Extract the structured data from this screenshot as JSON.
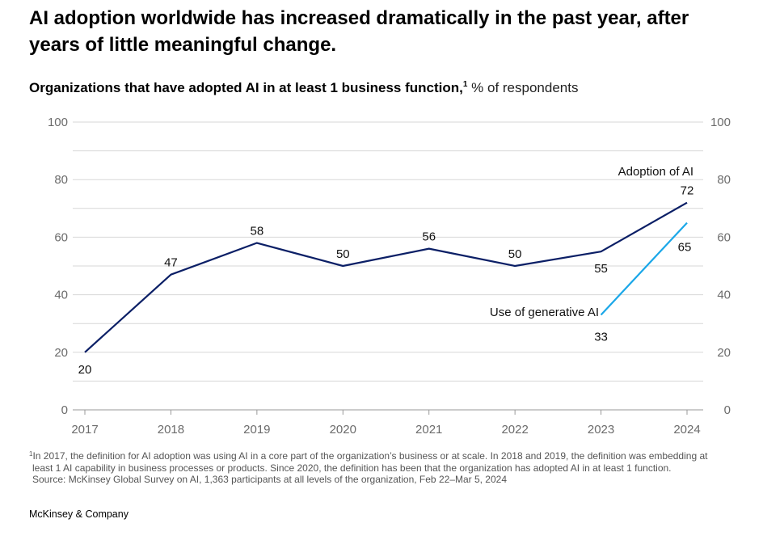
{
  "headline": "AI adoption worldwide has increased dramatically in the past year, after years of little meaningful change.",
  "subtitle": {
    "bold": "Organizations that have adopted AI in at least 1 business function,",
    "sup": "1",
    "rest": " % of respondents"
  },
  "footnote": {
    "marker": "1",
    "line1": "In 2017, the definition for AI adoption was using AI in a core part of the organization’s business or at scale. In 2018 and 2019, the definition was embedding at",
    "line2": "least 1 AI capability in business processes or products. Since 2020, the definition has been that the organization has adopted AI in at least 1 function.",
    "source": "Source: McKinsey Global Survey on AI, 1,363 participants at all levels of the organization, Feb 22–Mar 5, 2024"
  },
  "brand": "McKinsey & Company",
  "colors": {
    "adoption": "#0b1f66",
    "genai": "#1aa7e8",
    "grid": "#d7d7d7",
    "axis_text": "#6b6b6b"
  },
  "chart_data": {
    "type": "line",
    "title": "Organizations that have adopted AI in at least 1 business function",
    "ylabel": "% of respondents",
    "xlabel": "",
    "ylim": [
      0,
      100
    ],
    "yticks": [
      0,
      20,
      40,
      60,
      80,
      100
    ],
    "categories": [
      "2017",
      "2018",
      "2019",
      "2020",
      "2021",
      "2022",
      "2023",
      "2024"
    ],
    "grid": true,
    "series": [
      {
        "name": "Adoption of AI",
        "color": "#0b1f66",
        "x": [
          "2017",
          "2018",
          "2019",
          "2020",
          "2021",
          "2022",
          "2023",
          "2024"
        ],
        "values": [
          20,
          47,
          58,
          50,
          56,
          50,
          55,
          72
        ]
      },
      {
        "name": "Use of generative AI",
        "color": "#1aa7e8",
        "x": [
          "2023",
          "2024"
        ],
        "values": [
          33,
          65
        ]
      }
    ]
  }
}
